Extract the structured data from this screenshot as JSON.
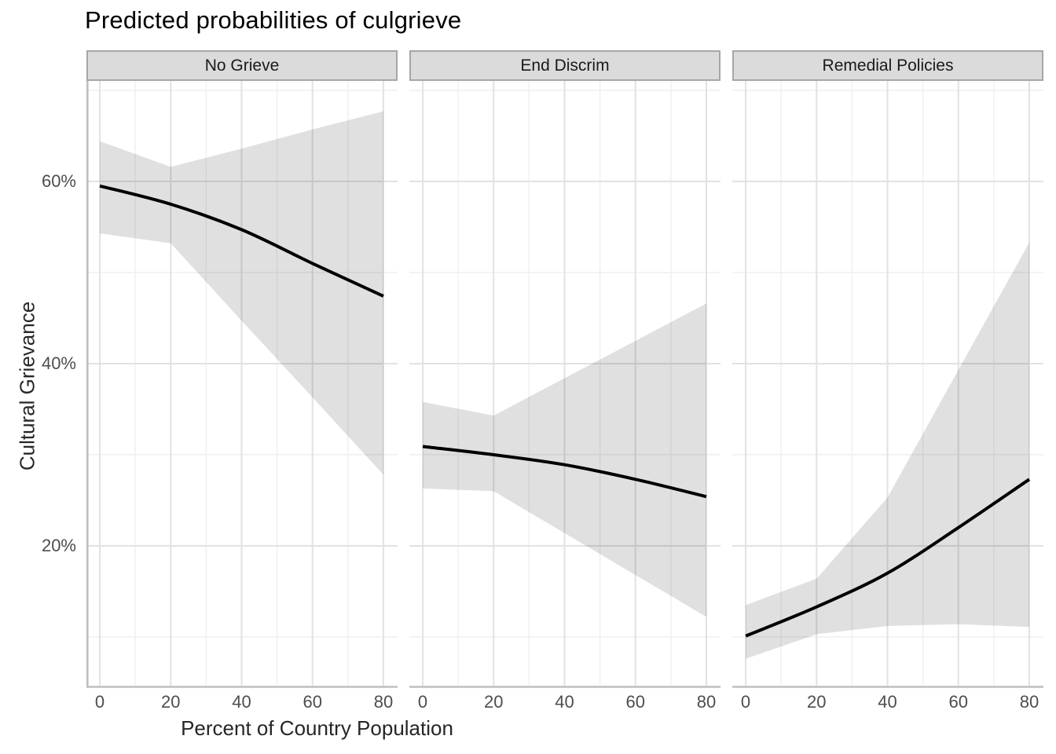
{
  "title": "Predicted probabilities of culgrieve",
  "colors": {
    "fit_line": "#000000",
    "ribbon": "rgba(0,0,0,0.122)",
    "grid_major": "#e2e2e2",
    "grid_minor": "#f1f1f1",
    "axis_line": "#bfbfbf",
    "strip_fill": "#dbdbdb",
    "strip_border": "#a6a6a6",
    "tick_text": "#4d4d4d"
  },
  "chart_data": {
    "type": "line",
    "title": "Predicted probabilities of culgrieve",
    "xlabel": "Percent of Country Population",
    "ylabel": "Cultural Grievance",
    "unit": "percent",
    "legend": "none",
    "grid": true,
    "x": [
      0,
      20,
      40,
      60,
      80
    ],
    "xlim": [
      -3.78,
      84.0
    ],
    "ylim": [
      4.48,
      71.03
    ],
    "x_ticks": {
      "values": [
        0,
        20,
        40,
        60,
        80
      ],
      "labels": [
        "0",
        "20",
        "40",
        "60",
        "80"
      ]
    },
    "y_ticks": {
      "values": [
        20,
        40,
        60
      ],
      "labels": [
        "20%",
        "40%",
        "60%"
      ]
    },
    "x_minor": [
      10,
      30,
      50,
      70
    ],
    "y_minor": [
      10,
      30,
      50,
      70
    ],
    "facets": [
      {
        "label": "No Grieve",
        "fit": [
          59.5,
          57.5,
          54.7,
          51.0,
          47.4
        ],
        "lower": [
          54.3,
          53.2,
          44.7,
          36.3,
          27.8
        ],
        "upper": [
          64.4,
          61.6,
          63.6,
          65.7,
          67.7
        ]
      },
      {
        "label": "End Discrim",
        "fit": [
          30.9,
          30.0,
          28.9,
          27.3,
          25.4
        ],
        "lower": [
          26.3,
          26.0,
          21.4,
          16.8,
          12.2
        ],
        "upper": [
          35.8,
          34.3,
          38.4,
          42.5,
          46.6
        ]
      },
      {
        "label": "Remedial Policies",
        "fit": [
          10.1,
          13.3,
          17.0,
          22.0,
          27.3
        ],
        "lower": [
          7.6,
          10.3,
          11.2,
          11.4,
          11.1
        ],
        "upper": [
          13.5,
          16.4,
          25.3,
          39.3,
          53.3
        ]
      }
    ]
  }
}
